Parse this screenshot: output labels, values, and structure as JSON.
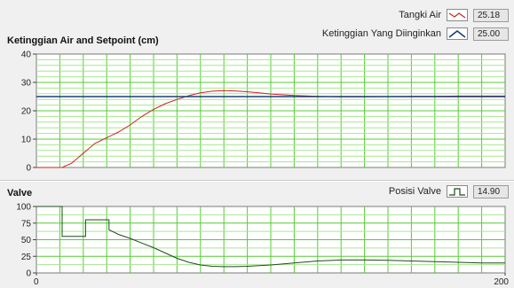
{
  "top_chart": {
    "title": "Ketinggian Air and Setpoint (cm)",
    "legend": [
      {
        "label": "Tangki Air",
        "value": "25.18",
        "color": "#cc2222",
        "icon": "red-line-swatch-icon"
      },
      {
        "label": "Ketinggian Yang Diinginkan",
        "value": "25.00",
        "color": "#1a3f7a",
        "icon": "blue-line-swatch-icon"
      }
    ],
    "y_ticks": [
      "0",
      "10",
      "20",
      "30",
      "40"
    ]
  },
  "bottom_chart": {
    "title": "Valve",
    "legend": [
      {
        "label": "Posisi Valve",
        "value": "14.90",
        "color": "#1f4a1f",
        "icon": "step-line-swatch-icon"
      }
    ],
    "y_ticks": [
      "0",
      "25",
      "50",
      "75",
      "100"
    ],
    "x_ticks": [
      "0",
      "200"
    ]
  },
  "colors": {
    "plot_bg": "#ffffff",
    "grid_major": "#55cc33",
    "grid_minor": "#a8e690",
    "level_line": "#cc2222",
    "setpoint_line": "#1a3f7a",
    "valve_line": "#1f4a1f"
  },
  "chart_data": [
    {
      "type": "line",
      "title": "Ketinggian Air and Setpoint (cm)",
      "xlabel": "",
      "ylabel": "",
      "xlim": [
        0,
        200
      ],
      "ylim": [
        0,
        40
      ],
      "grid": true,
      "legend": "top-right",
      "series": [
        {
          "name": "Tangki Air",
          "x": [
            0,
            11,
            15,
            20,
            25,
            30,
            35,
            40,
            45,
            50,
            55,
            60,
            65,
            70,
            75,
            80,
            85,
            90,
            95,
            100,
            110,
            120,
            130,
            140,
            150,
            160,
            170,
            180,
            190,
            200
          ],
          "values": [
            0,
            0,
            1.5,
            5,
            8.5,
            10.5,
            12.5,
            15,
            18,
            20.5,
            22.5,
            24,
            25.3,
            26.3,
            26.9,
            27.1,
            27,
            26.7,
            26.3,
            25.9,
            25.4,
            25.1,
            24.9,
            24.9,
            25,
            25.1,
            25.1,
            25.2,
            25.2,
            25.18
          ]
        },
        {
          "name": "Ketinggian Yang Diinginkan",
          "x": [
            0,
            200
          ],
          "values": [
            25,
            25
          ]
        }
      ]
    },
    {
      "type": "line",
      "title": "Valve",
      "xlabel": "",
      "ylabel": "",
      "xlim": [
        0,
        200
      ],
      "ylim": [
        0,
        100
      ],
      "grid": true,
      "legend": "top-right",
      "series": [
        {
          "name": "Posisi Valve",
          "x": [
            0,
            11,
            11,
            21,
            21,
            31,
            31,
            35,
            40,
            45,
            50,
            55,
            60,
            65,
            70,
            75,
            80,
            85,
            90,
            100,
            110,
            120,
            130,
            140,
            150,
            160,
            170,
            180,
            190,
            200
          ],
          "values": [
            100,
            100,
            55,
            55,
            80,
            80,
            65,
            58,
            52,
            45,
            38,
            30,
            22,
            16,
            12,
            10,
            9.5,
            9.5,
            10,
            12,
            15,
            18,
            19.5,
            19.5,
            19,
            18,
            17,
            16,
            15,
            14.9
          ]
        }
      ]
    }
  ]
}
